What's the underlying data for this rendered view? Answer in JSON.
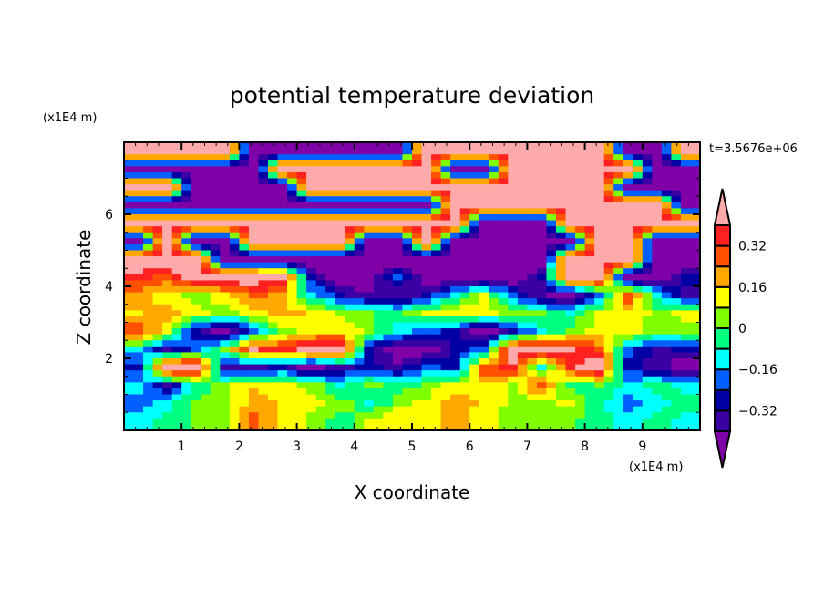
{
  "chart_data": {
    "type": "heatmap",
    "title": "potential temperature deviation",
    "xlabel": "X coordinate",
    "ylabel": "Z coordinate",
    "x_unit": "(x1E4 m)",
    "y_unit": "(x1E4 m)",
    "time_label": "t=3.5676e+06",
    "xlim": [
      0,
      10
    ],
    "ylim": [
      0,
      8
    ],
    "x_ticks": [
      "1",
      "2",
      "3",
      "4",
      "5",
      "6",
      "7",
      "8",
      "9"
    ],
    "x_tick_values": [
      1,
      2,
      3,
      4,
      5,
      6,
      7,
      8,
      9
    ],
    "y_ticks": [
      "2",
      "4",
      "6"
    ],
    "y_tick_values": [
      2,
      4,
      6
    ],
    "colorbar": {
      "levels": [
        -0.4,
        -0.32,
        -0.24,
        -0.16,
        -0.08,
        0,
        0.08,
        0.16,
        0.24,
        0.32,
        0.4
      ],
      "labels": [
        "0.32",
        "0.16",
        "0",
        "−0.16",
        "−0.32"
      ],
      "label_values": [
        0.32,
        0.16,
        0,
        -0.16,
        -0.32
      ],
      "colors": [
        "#7f00a6",
        "#3a00a4",
        "#0000a4",
        "#0060ff",
        "#00ffff",
        "#00ff80",
        "#80ff00",
        "#ffff00",
        "#ffa800",
        "#ff5000",
        "#ff2020",
        "#ffaaaa"
      ],
      "extend": "both"
    },
    "grid_note": "coarse approximation, rows from z=8 (top) to z=0, columns x=0..10",
    "field": [
      [
        0.5,
        0.5,
        0.5,
        0.5,
        -0.5,
        -0.5,
        -0.5,
        -0.5,
        -0.5,
        -0.5,
        0.5,
        0.5,
        0.5,
        0.5,
        0.5,
        0.5,
        0.5,
        -0.5,
        -0.5,
        0.5
      ],
      [
        -0.5,
        -0.5,
        -0.5,
        -0.5,
        -0.5,
        0.5,
        0.5,
        0.5,
        0.5,
        0.5,
        0.5,
        -0.5,
        -0.5,
        0.5,
        0.5,
        0.5,
        0.5,
        0.5,
        -0.5,
        -0.5
      ],
      [
        0.5,
        0.5,
        -0.5,
        -0.5,
        -0.5,
        -0.5,
        0.5,
        0.5,
        0.5,
        0.5,
        0.5,
        0.5,
        0.5,
        0.5,
        0.5,
        0.5,
        0.5,
        -0.5,
        -0.5,
        -0.5
      ],
      [
        -0.5,
        -0.5,
        -0.5,
        -0.5,
        -0.5,
        -0.5,
        -0.5,
        -0.5,
        -0.5,
        -0.5,
        -0.5,
        0.5,
        0.5,
        0.5,
        0.5,
        0.5,
        0.5,
        0.5,
        0.5,
        -0.5
      ],
      [
        0.5,
        0.5,
        0.5,
        0.5,
        0.5,
        0.5,
        0.5,
        0.5,
        0.5,
        0.5,
        0.5,
        0.5,
        -0.5,
        -0.5,
        -0.5,
        0.5,
        0.5,
        0.5,
        0.5,
        0.5
      ],
      [
        -0.5,
        0.5,
        -0.5,
        -0.5,
        0.5,
        0.5,
        0.5,
        0.5,
        -0.5,
        -0.5,
        0.5,
        -0.5,
        -0.5,
        -0.5,
        -0.5,
        -0.5,
        0.5,
        0.5,
        -0.5,
        -0.5
      ],
      [
        0.5,
        0.5,
        0.5,
        -0.5,
        -0.5,
        -0.5,
        -0.5,
        -0.5,
        -0.5,
        -0.5,
        -0.5,
        -0.5,
        -0.5,
        -0.5,
        -0.5,
        0.5,
        0.5,
        0.5,
        -0.5,
        -0.5
      ],
      [
        0.36,
        0.3,
        0.5,
        0.5,
        0.5,
        0.4,
        -0.3,
        -0.5,
        -0.5,
        -0.2,
        -0.5,
        -0.5,
        -0.5,
        -0.5,
        -0.3,
        0.5,
        0.5,
        -0.5,
        -0.5,
        -0.3
      ],
      [
        0.2,
        0.1,
        0.05,
        0.12,
        0.28,
        0.2,
        -0.1,
        -0.3,
        -0.4,
        -0.4,
        -0.3,
        -0.1,
        0.1,
        -0.2,
        -0.4,
        -0.5,
        -0.2,
        0.3,
        -0.1,
        -0.35
      ],
      [
        0.15,
        0.2,
        0.1,
        0.05,
        0.12,
        0.2,
        0.15,
        0.05,
        0.02,
        -0.05,
        0.1,
        0.15,
        0.12,
        0.05,
        0,
        -0.1,
        0.1,
        0.15,
        0.05,
        0.1
      ],
      [
        0.3,
        0.1,
        -0.3,
        -0.5,
        -0.2,
        0.05,
        0.1,
        0.15,
        0.05,
        -0.1,
        -0.2,
        -0.3,
        -0.5,
        -0.3,
        -0.1,
        0.05,
        0.1,
        0.12,
        0,
        0.05
      ],
      [
        -0.1,
        -0.35,
        -0.2,
        0.05,
        0.4,
        0.35,
        0.5,
        0.5,
        -0.3,
        -0.5,
        -0.5,
        -0.3,
        -0.2,
        0.5,
        0.5,
        0.4,
        0.3,
        -0.2,
        -0.35,
        -0.3
      ],
      [
        -0.3,
        0.5,
        0.5,
        -0.35,
        -0.35,
        -0.3,
        -0.5,
        -0.35,
        -0.3,
        -0.35,
        -0.2,
        -0.3,
        0.3,
        0.35,
        -0.1,
        0.35,
        0.5,
        -0.3,
        -0.35,
        -0.5
      ],
      [
        -0.1,
        -0.35,
        -0.05,
        0.05,
        0.15,
        0.12,
        0.05,
        -0.1,
        0.05,
        -0.05,
        0.02,
        0.12,
        0.15,
        0.05,
        0.3,
        -0.05,
        0,
        -0.1,
        -0.05,
        -0.1
      ],
      [
        -0.2,
        -0.1,
        0,
        0.05,
        0.2,
        0.15,
        0.1,
        0.05,
        -0.1,
        0.05,
        0.1,
        0.2,
        0.15,
        0.05,
        0.05,
        0.1,
        -0.05,
        -0.2,
        -0.1,
        -0.05
      ],
      [
        -0.1,
        -0.05,
        0.02,
        0.05,
        0.28,
        0.15,
        0.05,
        -0.05,
        0.1,
        0.15,
        0.12,
        0.2,
        0.1,
        0.05,
        0.05,
        0.02,
        -0.05,
        -0.1,
        -0.05,
        -0.1
      ]
    ]
  }
}
